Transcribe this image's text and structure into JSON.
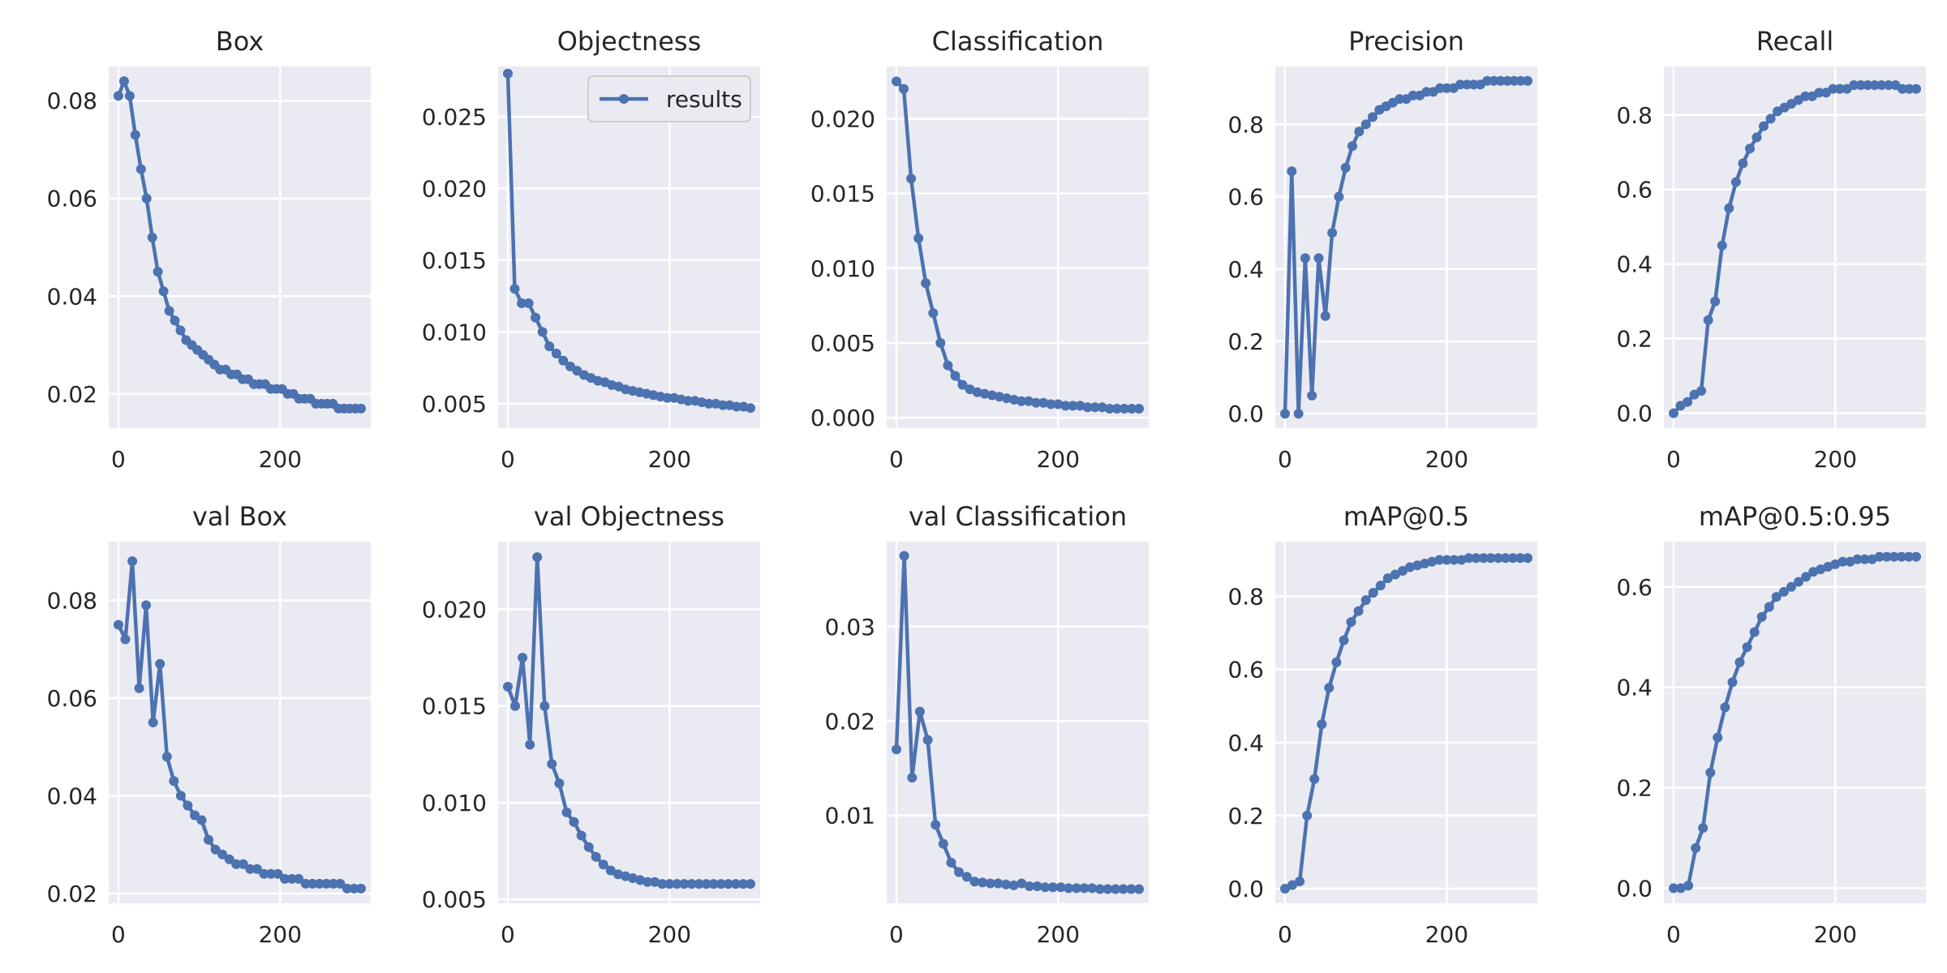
{
  "colors": {
    "series": "#4c72b0",
    "panel_bg": "#eaeaf2",
    "grid": "#ffffff",
    "text": "#262626"
  },
  "legend": {
    "label": "results"
  },
  "chart_data": [
    {
      "type": "line",
      "title": "Box",
      "series": [
        {
          "name": "results",
          "values": [
            0.081,
            0.084,
            0.081,
            0.073,
            0.066,
            0.06,
            0.052,
            0.045,
            0.041,
            0.037,
            0.035,
            0.033,
            0.031,
            0.03,
            0.029,
            0.028,
            0.027,
            0.026,
            0.025,
            0.025,
            0.024,
            0.024,
            0.023,
            0.023,
            0.022,
            0.022,
            0.022,
            0.021,
            0.021,
            0.021,
            0.02,
            0.02,
            0.019,
            0.019,
            0.019,
            0.018,
            0.018,
            0.018,
            0.018,
            0.017,
            0.017,
            0.017,
            0.017,
            0.017
          ]
        }
      ],
      "x_max": 300,
      "xticks": [
        0,
        200
      ],
      "ylim": [
        0.013,
        0.087
      ],
      "yticks": [
        0.02,
        0.04,
        0.06,
        0.08
      ]
    },
    {
      "type": "line",
      "title": "Objectness",
      "series": [
        {
          "name": "results",
          "values": [
            0.028,
            0.013,
            0.012,
            0.012,
            0.011,
            0.01,
            0.009,
            0.0085,
            0.008,
            0.0076,
            0.0073,
            0.007,
            0.0068,
            0.0066,
            0.0065,
            0.0063,
            0.0062,
            0.006,
            0.0059,
            0.0058,
            0.0057,
            0.0056,
            0.0055,
            0.0054,
            0.0054,
            0.0053,
            0.0052,
            0.0052,
            0.0051,
            0.005,
            0.005,
            0.0049,
            0.0049,
            0.0048,
            0.0048,
            0.0047
          ]
        }
      ],
      "x_max": 300,
      "xticks": [
        0,
        200
      ],
      "ylim": [
        0.0033,
        0.0285
      ],
      "yticks": [
        0.005,
        0.01,
        0.015,
        0.02,
        0.025
      ],
      "legend": true
    },
    {
      "type": "line",
      "title": "Classification",
      "series": [
        {
          "name": "results",
          "values": [
            0.0225,
            0.022,
            0.016,
            0.012,
            0.009,
            0.007,
            0.005,
            0.0035,
            0.0028,
            0.0022,
            0.0019,
            0.0017,
            0.0016,
            0.0015,
            0.0014,
            0.0013,
            0.0012,
            0.0011,
            0.0011,
            0.001,
            0.001,
            0.0009,
            0.0009,
            0.0008,
            0.0008,
            0.0008,
            0.0007,
            0.0007,
            0.0007,
            0.0006,
            0.0006,
            0.0006,
            0.0006,
            0.0006
          ]
        }
      ],
      "x_max": 300,
      "xticks": [
        0,
        200
      ],
      "ylim": [
        -0.0007,
        0.0235
      ],
      "yticks": [
        0.0,
        0.005,
        0.01,
        0.015,
        0.02
      ]
    },
    {
      "type": "line",
      "title": "Precision",
      "series": [
        {
          "name": "results",
          "values": [
            0.0,
            0.67,
            0.0,
            0.43,
            0.05,
            0.43,
            0.27,
            0.5,
            0.6,
            0.68,
            0.74,
            0.78,
            0.8,
            0.82,
            0.84,
            0.85,
            0.86,
            0.87,
            0.87,
            0.88,
            0.88,
            0.89,
            0.89,
            0.9,
            0.9,
            0.9,
            0.91,
            0.91,
            0.91,
            0.91,
            0.92,
            0.92,
            0.92,
            0.92,
            0.92,
            0.92,
            0.92
          ]
        }
      ],
      "x_max": 300,
      "xticks": [
        0,
        200
      ],
      "ylim": [
        -0.04,
        0.96
      ],
      "yticks": [
        0.0,
        0.2,
        0.4,
        0.6,
        0.8
      ]
    },
    {
      "type": "line",
      "title": "Recall",
      "series": [
        {
          "name": "results",
          "values": [
            0.0,
            0.02,
            0.03,
            0.05,
            0.06,
            0.25,
            0.3,
            0.45,
            0.55,
            0.62,
            0.67,
            0.71,
            0.74,
            0.77,
            0.79,
            0.81,
            0.82,
            0.83,
            0.84,
            0.85,
            0.85,
            0.86,
            0.86,
            0.87,
            0.87,
            0.87,
            0.88,
            0.88,
            0.88,
            0.88,
            0.88,
            0.88,
            0.88,
            0.87,
            0.87,
            0.87
          ]
        }
      ],
      "x_max": 300,
      "xticks": [
        0,
        200
      ],
      "ylim": [
        -0.04,
        0.93
      ],
      "yticks": [
        0.0,
        0.2,
        0.4,
        0.6,
        0.8
      ]
    },
    {
      "type": "line",
      "title": "val Box",
      "series": [
        {
          "name": "results",
          "values": [
            0.075,
            0.072,
            0.088,
            0.062,
            0.079,
            0.055,
            0.067,
            0.048,
            0.043,
            0.04,
            0.038,
            0.036,
            0.035,
            0.031,
            0.029,
            0.028,
            0.027,
            0.026,
            0.026,
            0.025,
            0.025,
            0.024,
            0.024,
            0.024,
            0.023,
            0.023,
            0.023,
            0.022,
            0.022,
            0.022,
            0.022,
            0.022,
            0.022,
            0.021,
            0.021,
            0.021
          ]
        }
      ],
      "x_max": 300,
      "xticks": [
        0,
        200
      ],
      "ylim": [
        0.018,
        0.092
      ],
      "yticks": [
        0.02,
        0.04,
        0.06,
        0.08
      ]
    },
    {
      "type": "line",
      "title": "val Objectness",
      "series": [
        {
          "name": "results",
          "values": [
            0.016,
            0.015,
            0.0175,
            0.013,
            0.0227,
            0.015,
            0.012,
            0.011,
            0.0095,
            0.009,
            0.0083,
            0.0077,
            0.0072,
            0.0068,
            0.0065,
            0.0063,
            0.0062,
            0.0061,
            0.006,
            0.0059,
            0.0059,
            0.0058,
            0.0058,
            0.0058,
            0.0058,
            0.0058,
            0.0058,
            0.0058,
            0.0058,
            0.0058,
            0.0058,
            0.0058,
            0.0058,
            0.0058
          ]
        }
      ],
      "x_max": 300,
      "xticks": [
        0,
        200
      ],
      "ylim": [
        0.0048,
        0.0235
      ],
      "yticks": [
        0.005,
        0.01,
        0.015,
        0.02
      ]
    },
    {
      "type": "line",
      "title": "val Classification",
      "series": [
        {
          "name": "results",
          "values": [
            0.017,
            0.0375,
            0.014,
            0.021,
            0.018,
            0.009,
            0.007,
            0.005,
            0.004,
            0.0035,
            0.003,
            0.0029,
            0.0028,
            0.0028,
            0.0027,
            0.0026,
            0.0028,
            0.0025,
            0.0025,
            0.0024,
            0.0024,
            0.0024,
            0.0023,
            0.0023,
            0.0023,
            0.0023,
            0.0022,
            0.0022,
            0.0022,
            0.0022,
            0.0022,
            0.0022
          ]
        }
      ],
      "x_max": 300,
      "xticks": [
        0,
        200
      ],
      "ylim": [
        0.0007,
        0.039
      ],
      "yticks": [
        0.01,
        0.02,
        0.03
      ]
    },
    {
      "type": "line",
      "title": "mAP@0.5",
      "series": [
        {
          "name": "results",
          "values": [
            0.0,
            0.01,
            0.02,
            0.2,
            0.3,
            0.45,
            0.55,
            0.62,
            0.68,
            0.73,
            0.76,
            0.79,
            0.81,
            0.83,
            0.85,
            0.86,
            0.87,
            0.88,
            0.885,
            0.89,
            0.895,
            0.9,
            0.9,
            0.9,
            0.9,
            0.905,
            0.905,
            0.905,
            0.905,
            0.905,
            0.905,
            0.905,
            0.905,
            0.905
          ]
        }
      ],
      "x_max": 300,
      "xticks": [
        0,
        200
      ],
      "ylim": [
        -0.04,
        0.95
      ],
      "yticks": [
        0.0,
        0.2,
        0.4,
        0.6,
        0.8
      ]
    },
    {
      "type": "line",
      "title": "mAP@0.5:0.95",
      "series": [
        {
          "name": "results",
          "values": [
            0.0,
            0.0,
            0.005,
            0.08,
            0.12,
            0.23,
            0.3,
            0.36,
            0.41,
            0.45,
            0.48,
            0.51,
            0.54,
            0.56,
            0.58,
            0.59,
            0.6,
            0.61,
            0.62,
            0.63,
            0.635,
            0.64,
            0.645,
            0.65,
            0.65,
            0.655,
            0.655,
            0.655,
            0.66,
            0.66,
            0.66,
            0.66,
            0.66,
            0.66
          ]
        }
      ],
      "x_max": 300,
      "xticks": [
        0,
        200
      ],
      "ylim": [
        -0.03,
        0.69
      ],
      "yticks": [
        0.0,
        0.2,
        0.4,
        0.6
      ]
    }
  ]
}
